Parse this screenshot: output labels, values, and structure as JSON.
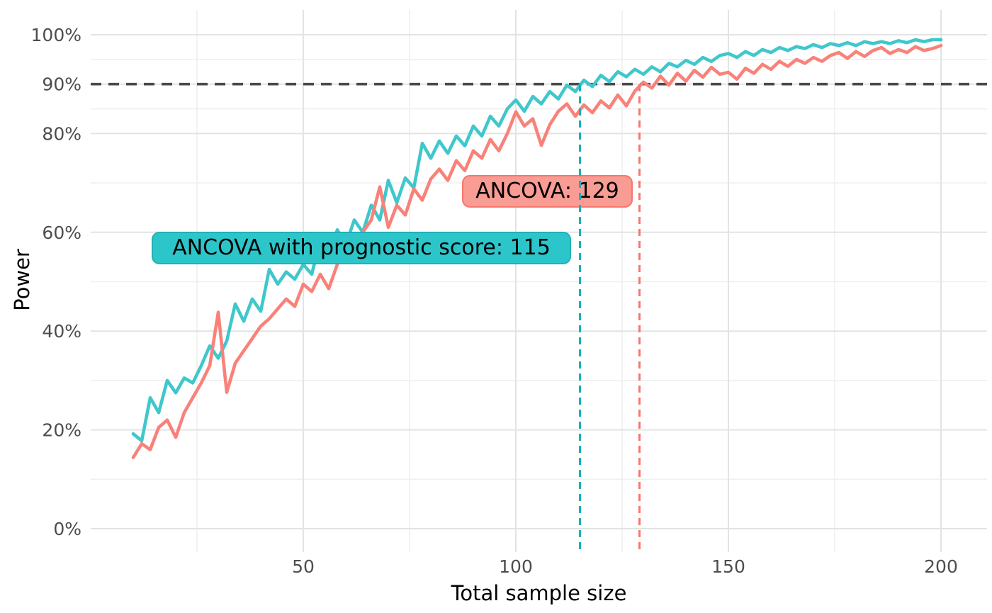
{
  "colors": {
    "background": "#ffffff",
    "grid_major": "#e3e3e3",
    "grid_minor": "#efefef",
    "axis_text": "#4d4d4d",
    "axis_title": "#000000",
    "reference_line": "#4a4a4a",
    "teal_series": "#3fc7cc",
    "red_series": "#f8827a"
  },
  "chart_data": {
    "type": "line",
    "title": "",
    "xlabel": "Total sample size",
    "ylabel": "Power",
    "grid": true,
    "legend_position": "none",
    "x_axis": {
      "range": [
        0,
        210
      ],
      "ticks": [
        {
          "value": 50,
          "label": "50"
        },
        {
          "value": 100,
          "label": "100"
        },
        {
          "value": 150,
          "label": "150"
        },
        {
          "value": 200,
          "label": "200"
        }
      ],
      "minor_ticks": [
        25,
        75,
        125,
        175
      ]
    },
    "y_axis": {
      "range": [
        -5,
        105
      ],
      "unit": "percent",
      "ticks": [
        {
          "value": 0,
          "label": "0%"
        },
        {
          "value": 20,
          "label": "20%"
        },
        {
          "value": 40,
          "label": "40%"
        },
        {
          "value": 60,
          "label": "60%"
        },
        {
          "value": 80,
          "label": "80%"
        },
        {
          "value": 90,
          "label": "90%"
        },
        {
          "value": 100,
          "label": "100%"
        }
      ],
      "minor_ticks": [
        10,
        30,
        50,
        70,
        85,
        95
      ]
    },
    "reference_line": {
      "y": 90,
      "style": "dashed",
      "color": "#4a4a4a"
    },
    "annotations": [
      {
        "label": "ANCOVA with prognostic score: 115",
        "n": 115,
        "crosses_power": 90,
        "line_color": "#17b1bd",
        "box_fill": "#2cc6ca",
        "box_border": "#1fb0b8",
        "text_color": "#000000"
      },
      {
        "label": "ANCOVA: 129",
        "n": 129,
        "crosses_power": 90,
        "line_color": "#f8766d",
        "box_fill": "#f89c94",
        "box_border": "#f8766d",
        "text_color": "#000000"
      }
    ],
    "series": [
      {
        "name": "ANCOVA with prognostic score",
        "color": "#3fc7cc",
        "x": [
          10,
          12,
          14,
          16,
          18,
          20,
          22,
          24,
          26,
          28,
          30,
          32,
          34,
          36,
          38,
          40,
          42,
          44,
          46,
          48,
          50,
          52,
          54,
          56,
          58,
          60,
          62,
          64,
          66,
          68,
          70,
          72,
          74,
          76,
          78,
          80,
          82,
          84,
          86,
          88,
          90,
          92,
          94,
          96,
          98,
          100,
          102,
          104,
          106,
          108,
          110,
          112,
          114,
          116,
          118,
          120,
          122,
          124,
          126,
          128,
          130,
          132,
          134,
          136,
          138,
          140,
          142,
          144,
          146,
          148,
          150,
          152,
          154,
          156,
          158,
          160,
          162,
          164,
          166,
          168,
          170,
          172,
          174,
          176,
          178,
          180,
          182,
          184,
          186,
          188,
          190,
          192,
          194,
          196,
          198,
          200
        ],
        "values": [
          19.2,
          17.8,
          26.5,
          23.5,
          30.0,
          27.5,
          30.5,
          29.5,
          33.0,
          37.0,
          34.5,
          38.0,
          45.5,
          42.0,
          46.5,
          44.0,
          52.5,
          49.5,
          52.0,
          50.5,
          53.5,
          51.5,
          58.5,
          54.5,
          60.5,
          57.5,
          62.5,
          60.0,
          65.5,
          62.5,
          70.5,
          66.0,
          71.0,
          69.0,
          78.0,
          75.0,
          78.5,
          76.0,
          79.5,
          77.5,
          81.5,
          79.5,
          83.5,
          81.5,
          85.0,
          86.8,
          84.5,
          87.5,
          86.0,
          88.5,
          87.0,
          89.8,
          88.5,
          90.8,
          89.5,
          91.8,
          90.5,
          92.5,
          91.5,
          93.0,
          92.0,
          93.5,
          92.5,
          94.2,
          93.5,
          94.8,
          94.0,
          95.4,
          94.6,
          95.8,
          96.2,
          95.4,
          96.6,
          95.8,
          97.0,
          96.4,
          97.4,
          96.8,
          97.6,
          97.2,
          98.0,
          97.4,
          98.2,
          97.8,
          98.4,
          97.8,
          98.6,
          98.2,
          98.6,
          98.2,
          98.8,
          98.4,
          99.0,
          98.6,
          99.0,
          99.0
        ]
      },
      {
        "name": "ANCOVA",
        "color": "#f8827a",
        "x": [
          10,
          12,
          14,
          16,
          18,
          20,
          22,
          24,
          26,
          28,
          30,
          32,
          34,
          36,
          38,
          40,
          42,
          44,
          46,
          48,
          50,
          52,
          54,
          56,
          58,
          60,
          62,
          64,
          66,
          68,
          70,
          72,
          74,
          76,
          78,
          80,
          82,
          84,
          86,
          88,
          90,
          92,
          94,
          96,
          98,
          100,
          102,
          104,
          106,
          108,
          110,
          112,
          114,
          116,
          118,
          120,
          122,
          124,
          126,
          128,
          130,
          132,
          134,
          136,
          138,
          140,
          142,
          144,
          146,
          148,
          150,
          152,
          154,
          156,
          158,
          160,
          162,
          164,
          166,
          168,
          170,
          172,
          174,
          176,
          178,
          180,
          182,
          184,
          186,
          188,
          190,
          192,
          194,
          196,
          198,
          200
        ],
        "values": [
          14.4,
          17.2,
          16.0,
          20.5,
          22.0,
          18.5,
          23.5,
          26.5,
          29.5,
          33.0,
          43.8,
          27.6,
          33.5,
          36.0,
          38.5,
          41.0,
          42.5,
          44.5,
          46.5,
          45.0,
          49.5,
          48.0,
          51.5,
          48.6,
          53.5,
          56.5,
          58.0,
          60.0,
          62.5,
          69.2,
          61.0,
          65.5,
          63.5,
          68.8,
          66.5,
          70.8,
          72.8,
          70.5,
          74.5,
          72.5,
          76.5,
          75.0,
          78.8,
          76.5,
          80.0,
          84.4,
          81.5,
          83.0,
          77.6,
          81.8,
          84.5,
          86.0,
          83.5,
          85.8,
          84.2,
          86.6,
          85.2,
          87.8,
          85.6,
          88.6,
          90.4,
          89.2,
          91.6,
          89.8,
          92.2,
          90.6,
          92.8,
          91.4,
          93.4,
          92.0,
          92.4,
          91.0,
          93.2,
          92.2,
          94.0,
          93.0,
          94.6,
          93.6,
          95.0,
          94.2,
          95.4,
          94.6,
          95.8,
          96.4,
          95.2,
          96.6,
          95.6,
          96.8,
          97.4,
          96.2,
          97.0,
          96.4,
          97.6,
          96.8,
          97.2,
          97.8
        ]
      }
    ]
  }
}
